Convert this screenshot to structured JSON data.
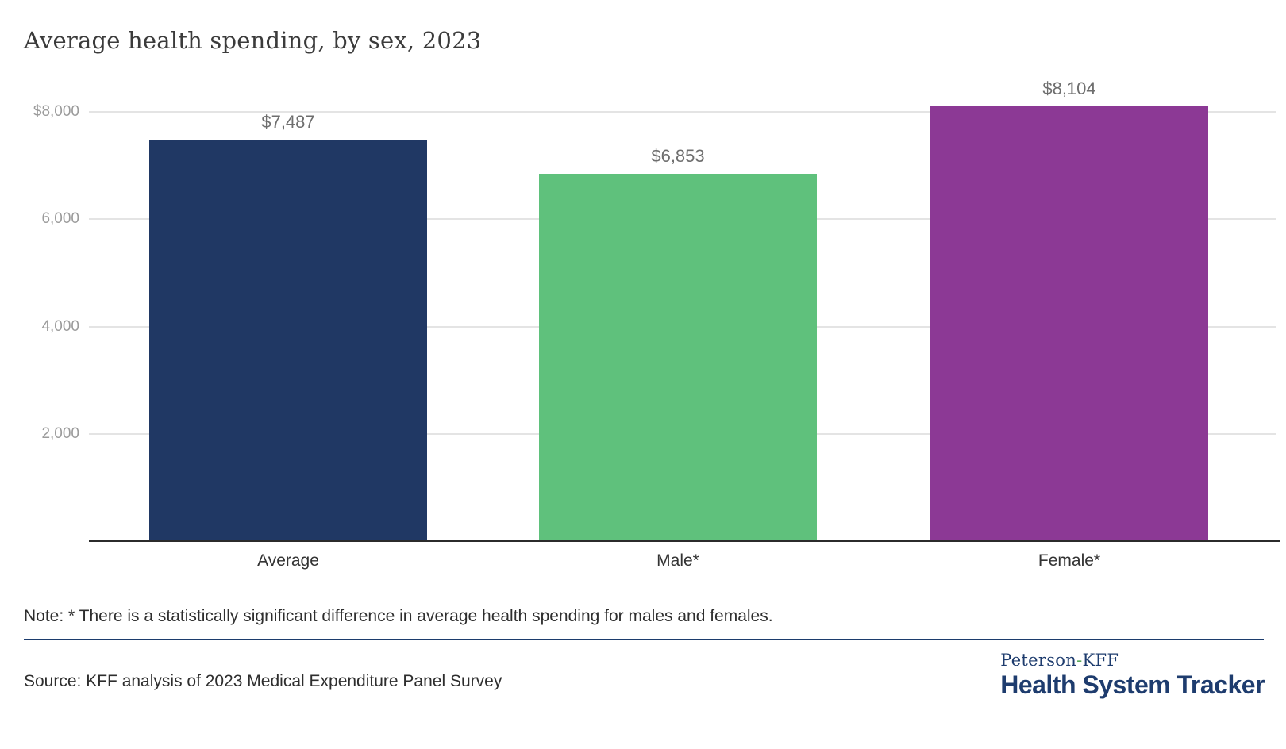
{
  "chart_data": {
    "type": "bar",
    "title": "Average health spending, by sex, 2023",
    "categories": [
      "Average",
      "Male*",
      "Female*"
    ],
    "values": [
      7487,
      6853,
      8104
    ],
    "value_labels": [
      "$7,487",
      "$6,853",
      "$8,104"
    ],
    "bar_colors": [
      "#203864",
      "#5fc17c",
      "#8c3995"
    ],
    "xlabel": "",
    "ylabel": "",
    "ylim": [
      0,
      8500
    ],
    "yticks": [
      2000,
      4000,
      6000,
      8000
    ],
    "ytick_labels": [
      "2,000",
      "4,000",
      "6,000",
      "$8,000"
    ],
    "grid": true,
    "legend": false
  },
  "note": "Note: * There is a statistically significant difference in average health spending for males and females.",
  "source": "Source: KFF analysis of 2023 Medical Expenditure Panel Survey",
  "branding": {
    "peterson": {
      "pre": "Peterson",
      "hyphen": "-",
      "post": "KFF"
    },
    "tracker": "Health System Tracker"
  },
  "colors": {
    "background": "#ffffff",
    "title_text": "#3b3b3b",
    "gridline": "#e4e4e4",
    "axis_line": "#2b2b2b",
    "tick_label": "#9b9b9b",
    "value_label": "#6e6e6e",
    "category_label": "#333333",
    "bar_navy": "#203864",
    "bar_green": "#5fc17c",
    "bar_purple": "#8c3995",
    "divider_navy": "#1c3c6d",
    "logo_navy": "#1e3c6e",
    "logo_hyphen_green": "#58a858"
  }
}
